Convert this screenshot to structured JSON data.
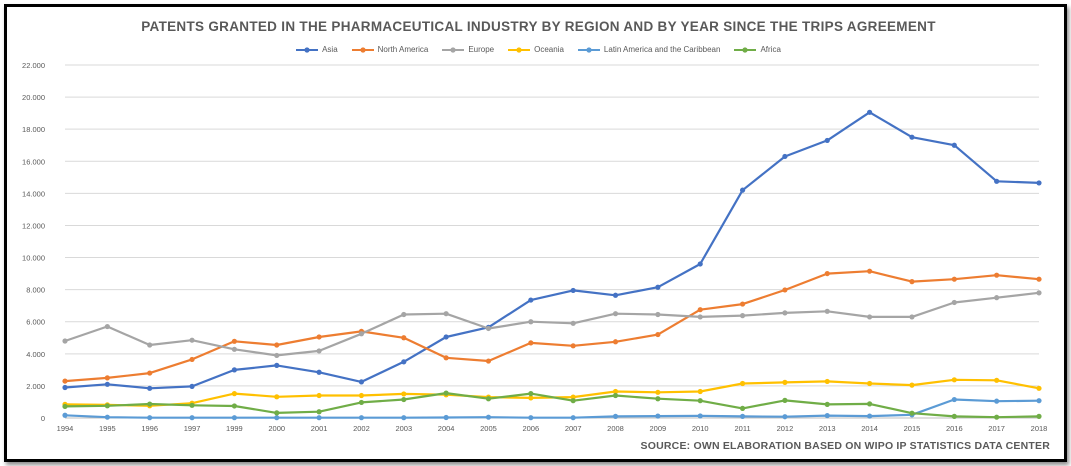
{
  "chart_data": {
    "type": "line",
    "title": "PATENTS GRANTED IN THE PHARMACEUTICAL INDUSTRY BY REGION AND BY YEAR SINCE THE TRIPS AGREEMENT",
    "source": "SOURCE: OWN ELABORATION BASED ON WIPO IP STATISTICS DATA CENTER",
    "x": [
      "1994",
      "1995",
      "1996",
      "1997",
      "1999",
      "2000",
      "2001",
      "2002",
      "2003",
      "2004",
      "2005",
      "2006",
      "2007",
      "2008",
      "2009",
      "2010",
      "2011",
      "2012",
      "2013",
      "2014",
      "2015",
      "2016",
      "2017",
      "2018"
    ],
    "y_ticks": [
      "0",
      "2.000",
      "4.000",
      "6.000",
      "8.000",
      "10.000",
      "12.000",
      "14.000",
      "16.000",
      "18.000",
      "20.000",
      "22.000"
    ],
    "ylim": [
      0,
      22000
    ],
    "grid": true,
    "legend_position": "top",
    "series": [
      {
        "name": "Asia",
        "color": "#4472C4",
        "values": [
          1900,
          2100,
          1850,
          1970,
          3000,
          3280,
          2850,
          2250,
          3500,
          5050,
          5650,
          7350,
          7950,
          7650,
          8150,
          9600,
          14200,
          16300,
          17300,
          19050,
          17500,
          17000,
          14750,
          14650
        ]
      },
      {
        "name": "North America",
        "color": "#ED7D31",
        "values": [
          2300,
          2500,
          2800,
          3650,
          4780,
          4550,
          5050,
          5400,
          5000,
          3750,
          3550,
          4680,
          4500,
          4750,
          5200,
          6750,
          7100,
          7980,
          9000,
          9150,
          8500,
          8650,
          8900,
          8650
        ]
      },
      {
        "name": "Europe",
        "color": "#A5A5A5",
        "values": [
          4800,
          5700,
          4550,
          4850,
          4280,
          3900,
          4180,
          5250,
          6450,
          6500,
          5580,
          6000,
          5900,
          6500,
          6450,
          6300,
          6380,
          6550,
          6650,
          6300,
          6300,
          7200,
          7500,
          7800
        ]
      },
      {
        "name": "Oceania",
        "color": "#FFC000",
        "values": [
          850,
          820,
          760,
          920,
          1520,
          1320,
          1400,
          1400,
          1500,
          1450,
          1300,
          1250,
          1300,
          1650,
          1600,
          1650,
          2150,
          2220,
          2280,
          2150,
          2050,
          2380,
          2350,
          1850
        ]
      },
      {
        "name": "Latin America and the Caribbean",
        "color": "#5B9BD5",
        "values": [
          170,
          50,
          20,
          20,
          20,
          20,
          20,
          20,
          20,
          30,
          50,
          20,
          20,
          100,
          120,
          130,
          100,
          80,
          150,
          120,
          200,
          1150,
          1050,
          1080
        ]
      },
      {
        "name": "Africa",
        "color": "#70AD47",
        "values": [
          720,
          760,
          870,
          790,
          750,
          320,
          390,
          970,
          1150,
          1550,
          1200,
          1520,
          1080,
          1400,
          1200,
          1080,
          600,
          1100,
          850,
          880,
          300,
          100,
          50,
          100
        ]
      }
    ]
  }
}
